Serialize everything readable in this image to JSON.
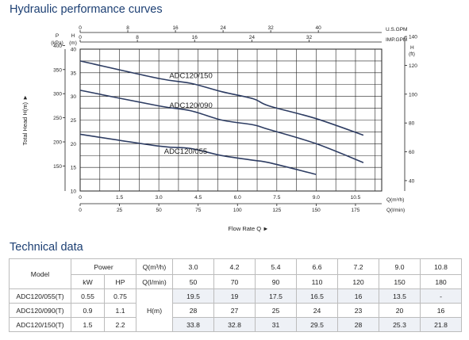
{
  "titles": {
    "curves": "Hydraulic performance curves",
    "tech": "Technical data"
  },
  "chart_data": {
    "type": "line",
    "title": "",
    "ylabel": "Total Head H(m)",
    "xlabel": "Flow Rate Q",
    "unit_labels": {
      "p_top": "P",
      "p_bottom": "(kPa)",
      "h_top": "H",
      "h_bottom": "(m)",
      "h_right": "H",
      "ft_right": "(ft)",
      "usgpm": "U.S.GPM",
      "impgpm": "IMP.GPM",
      "q_m3h": "Q(m³/h)",
      "q_lmin": "Q(l/min)"
    },
    "xlim": [
      0,
      11.5
    ],
    "ylim": [
      10,
      40
    ],
    "x_ticks_m3h": [
      "0",
      "1.5",
      "3.0",
      "4.5",
      "6.0",
      "7.5",
      "9.0",
      "10.5"
    ],
    "x_ticks_lmin": [
      "0",
      "25",
      "50",
      "75",
      "100",
      "125",
      "150",
      "175"
    ],
    "usgpm_ticks": [
      "0",
      "8",
      "16",
      "24",
      "32",
      "40"
    ],
    "impgpm_ticks": [
      "0",
      "8",
      "16",
      "24",
      "32"
    ],
    "y_ticks_m": [
      "10",
      "15",
      "20",
      "25",
      "30",
      "35",
      "40"
    ],
    "y_ticks_kpa": [
      "150",
      "200",
      "250",
      "300",
      "350",
      "400"
    ],
    "y_ticks_ft": [
      "40",
      "60",
      "80",
      "100",
      "120",
      "140"
    ],
    "grid": true,
    "series": [
      {
        "name": "ADC120/150",
        "color": "#2e3d63",
        "x": [
          0,
          3.0,
          4.2,
          5.4,
          6.6,
          7.2,
          9.0,
          10.8
        ],
        "y": [
          37.5,
          33.8,
          32.8,
          31,
          29.5,
          28,
          25.3,
          21.8
        ]
      },
      {
        "name": "ADC120/090",
        "color": "#2e3d63",
        "x": [
          0,
          3.0,
          4.2,
          5.4,
          6.6,
          7.2,
          9.0,
          10.8
        ],
        "y": [
          31.3,
          28,
          27,
          25,
          24,
          23,
          20,
          16
        ]
      },
      {
        "name": "ADC120/055",
        "color": "#2e3d63",
        "x": [
          0,
          3.0,
          4.2,
          5.4,
          6.6,
          7.2,
          9.0
        ],
        "y": [
          22.0,
          19.5,
          19,
          17.5,
          16.5,
          16,
          13.5
        ]
      }
    ]
  },
  "table": {
    "model_header": "Model",
    "power_header": "Power",
    "q_m3h_header": "Q(m³/h)",
    "q_lmin_header": "Q(l/min)",
    "kw_header": "kW",
    "hp_header": "HP",
    "h_label": "H(m)",
    "flows_m3h": [
      "3.0",
      "4.2",
      "5.4",
      "6.6",
      "7.2",
      "9.0",
      "10.8"
    ],
    "flows_lmin": [
      "50",
      "70",
      "90",
      "110",
      "120",
      "150",
      "180"
    ],
    "rows": [
      {
        "model": "ADC120/055(T)",
        "kw": "0.55",
        "hp": "0.75",
        "h": [
          "19.5",
          "19",
          "17.5",
          "16.5",
          "16",
          "13.5",
          "-"
        ]
      },
      {
        "model": "ADC120/090(T)",
        "kw": "0.9",
        "hp": "1.1",
        "h": [
          "28",
          "27",
          "25",
          "24",
          "23",
          "20",
          "16"
        ]
      },
      {
        "model": "ADC120/150(T)",
        "kw": "1.5",
        "hp": "2.2",
        "h": [
          "33.8",
          "32.8",
          "31",
          "29.5",
          "28",
          "25.3",
          "21.8"
        ]
      }
    ]
  }
}
